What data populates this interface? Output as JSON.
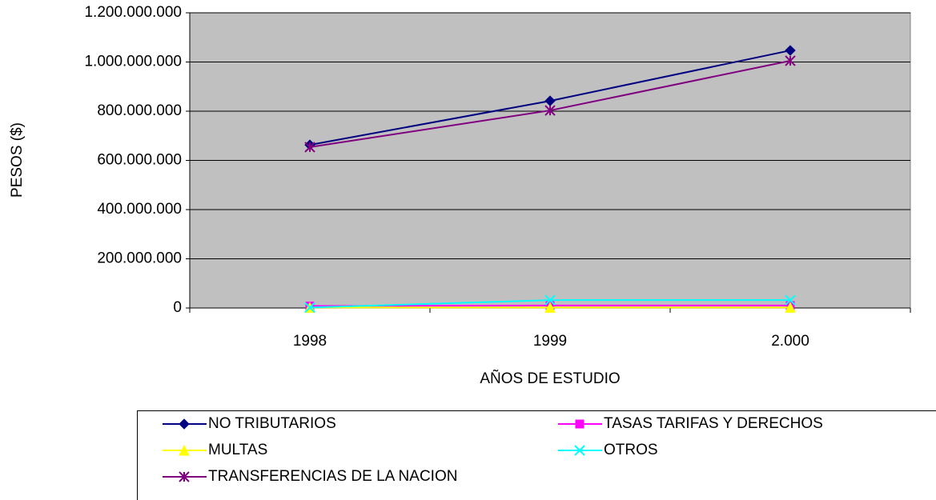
{
  "chart_data": {
    "type": "line",
    "x_label": "AÑOS DE ESTUDIO",
    "y_label": "PESOS ($)",
    "categories": [
      "1998",
      "1999",
      "2.000"
    ],
    "series": [
      {
        "name": "NO TRIBUTARIOS",
        "color": "#000080",
        "marker": "diamond",
        "values": [
          663000000,
          842000000,
          1047000000
        ]
      },
      {
        "name": "TASAS TARIFAS Y DERECHOS",
        "color": "#FF00FF",
        "marker": "square",
        "values": [
          8000000,
          10000000,
          10000000
        ]
      },
      {
        "name": "MULTAS",
        "color": "#FFFF00",
        "marker": "triangle",
        "values": [
          2000000,
          2000000,
          2000000
        ]
      },
      {
        "name": "OTROS",
        "color": "#00FFFF",
        "marker": "x",
        "values": [
          2000000,
          32000000,
          32000000
        ]
      },
      {
        "name": "TRANSFERENCIAS DE LA NACION",
        "color": "#800080",
        "marker": "asterisk",
        "values": [
          654000000,
          803000000,
          1005000000
        ]
      }
    ],
    "ylim": [
      0,
      1200000000
    ],
    "yticks": [
      0,
      {
        "value": 200000000,
        "label": "200.000.000"
      },
      {
        "value": 400000000,
        "label": "400.000.000"
      },
      {
        "value": 600000000,
        "label": "600.000.000"
      },
      {
        "value": 800000000,
        "label": "800.000.000"
      },
      {
        "value": 1000000000,
        "label": "1.000.000.000"
      },
      {
        "value": 1200000000,
        "label": "1.200.000.000"
      }
    ],
    "grid": true,
    "plot_background": "#C0C0C0",
    "legend_position": "bottom"
  }
}
